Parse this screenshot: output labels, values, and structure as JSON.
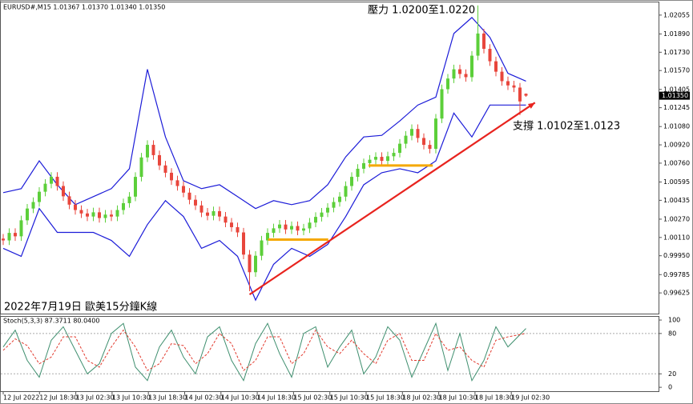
{
  "chart_data": {
    "type": "candlestick",
    "title": "EURUSD#,M15  1.01367 1.01370 1.01340 1.01350",
    "annotations": [
      "壓力 1.0200至1.0220",
      "支撐 1.0102至1.0123",
      "2022年7月19日 歐美15分鐘K線"
    ],
    "up_color": "#5ccf3a",
    "down_color": "#e8463c",
    "candles": [
      [
        1.001,
        1.0014,
        1.00044,
        1.00084
      ],
      [
        1.00084,
        1.0019,
        1.00044,
        1.0015
      ],
      [
        1.0015,
        1.0019,
        1.0008,
        1.0012
      ],
      [
        1.0012,
        1.003,
        1.0008,
        1.0026
      ],
      [
        1.0026,
        1.00403,
        1.0022,
        1.00363
      ],
      [
        1.00363,
        1.0046,
        1.00323,
        1.0042
      ],
      [
        1.0042,
        1.0055,
        1.0038,
        1.0051
      ],
      [
        1.0051,
        1.0062,
        1.0047,
        1.0058
      ],
      [
        1.0058,
        1.00681,
        1.0054,
        1.00641
      ],
      [
        1.00641,
        1.00681,
        1.0052,
        1.0056
      ],
      [
        1.0056,
        1.006,
        1.0043,
        1.0047
      ],
      [
        1.0047,
        1.0051,
        1.00357,
        1.00397
      ],
      [
        1.00397,
        1.00437,
        1.0031,
        1.0035
      ],
      [
        1.0035,
        1.0039,
        1.0028,
        1.0032
      ],
      [
        1.0032,
        1.0036,
        1.00253,
        1.00293
      ],
      [
        1.00293,
        1.0037,
        1.00253,
        1.0033
      ],
      [
        1.0033,
        1.0037,
        1.0024,
        1.0028
      ],
      [
        1.0028,
        1.0035,
        1.0024,
        1.0031
      ],
      [
        1.0031,
        1.0035,
        1.00253,
        1.00293
      ],
      [
        1.00293,
        1.0039,
        1.00253,
        1.0035
      ],
      [
        1.0035,
        1.0045,
        1.0031,
        1.0041
      ],
      [
        1.0041,
        1.00507,
        1.0037,
        1.00467
      ],
      [
        1.00467,
        1.0068,
        1.00427,
        1.0064
      ],
      [
        1.0064,
        1.0085,
        1.006,
        1.0081
      ],
      [
        1.0081,
        1.0096,
        1.0077,
        1.0092
      ],
      [
        1.0092,
        1.0096,
        1.0079,
        1.0083
      ],
      [
        1.0083,
        1.0087,
        1.007,
        1.0074
      ],
      [
        1.0074,
        1.0078,
        1.00636,
        1.00676
      ],
      [
        1.00676,
        1.00716,
        1.0057,
        1.0061
      ],
      [
        1.0061,
        1.0065,
        1.0052,
        1.0056
      ],
      [
        1.0056,
        1.006,
        1.00462,
        1.00502
      ],
      [
        1.00502,
        1.00542,
        1.004,
        1.0044
      ],
      [
        1.0044,
        1.0048,
        1.0035,
        1.0039
      ],
      [
        1.0039,
        1.0043,
        1.00288,
        1.00328
      ],
      [
        1.00328,
        1.00368,
        1.0026,
        1.003
      ],
      [
        1.003,
        1.0038,
        1.0026,
        1.0034
      ],
      [
        1.0034,
        1.0038,
        1.00253,
        1.00293
      ],
      [
        1.00293,
        1.00333,
        1.002,
        1.0024
      ],
      [
        1.0024,
        1.0028,
        1.0016,
        1.002
      ],
      [
        1.002,
        1.0024,
        1.00114,
        1.00154
      ],
      [
        1.00154,
        1.00194,
        0.9992,
        0.9996
      ],
      [
        0.9996,
        1.0,
        0.9964,
        0.99806
      ],
      [
        0.99806,
        0.9999,
        0.99766,
        0.9995
      ],
      [
        0.9995,
        1.00124,
        0.9991,
        1.00084
      ],
      [
        1.00084,
        1.0019,
        1.00044,
        1.0015
      ],
      [
        1.0015,
        1.0023,
        1.0011,
        1.0019
      ],
      [
        1.0019,
        1.00263,
        1.0015,
        1.00223
      ],
      [
        1.00223,
        1.00263,
        1.0014,
        1.0018
      ],
      [
        1.0018,
        1.0025,
        1.0014,
        1.0021
      ],
      [
        1.0021,
        1.0025,
        1.0013,
        1.0017
      ],
      [
        1.0017,
        1.00229,
        1.0013,
        1.00189
      ],
      [
        1.00189,
        1.0028,
        1.00149,
        1.0024
      ],
      [
        1.0024,
        1.0033,
        1.002,
        1.0029
      ],
      [
        1.0029,
        1.00368,
        1.0025,
        1.00328
      ],
      [
        1.00328,
        1.0041,
        1.00288,
        1.0037
      ],
      [
        1.0037,
        1.0046,
        1.0033,
        1.0042
      ],
      [
        1.0042,
        1.00507,
        1.0038,
        1.00467
      ],
      [
        1.00467,
        1.006,
        1.00427,
        1.0056
      ],
      [
        1.0056,
        1.0068,
        1.0052,
        1.0064
      ],
      [
        1.0064,
        1.00751,
        1.006,
        1.00711
      ],
      [
        1.00711,
        1.008,
        1.00671,
        1.0076
      ],
      [
        1.0076,
        1.0083,
        1.0072,
        1.0079
      ],
      [
        1.0079,
        1.00855,
        1.0075,
        1.00815
      ],
      [
        1.00815,
        1.00855,
        1.0074,
        1.0078
      ],
      [
        1.0078,
        1.0086,
        1.0074,
        1.0082
      ],
      [
        1.0082,
        1.0089,
        1.0078,
        1.0085
      ],
      [
        1.0085,
        1.0097,
        1.0081,
        1.0093
      ],
      [
        1.0093,
        1.0104,
        1.0089,
        1.01
      ],
      [
        1.01,
        1.01099,
        1.0096,
        1.01059
      ],
      [
        1.01059,
        1.01099,
        1.0094,
        1.0098
      ],
      [
        1.0098,
        1.0102,
        1.0088,
        1.0092
      ],
      [
        1.0092,
        1.0096,
        1.00845,
        1.00885
      ],
      [
        1.00885,
        1.0119,
        1.00845,
        1.0115
      ],
      [
        1.0115,
        1.01447,
        1.0111,
        1.01407
      ],
      [
        1.01407,
        1.0154,
        1.01367,
        1.015
      ],
      [
        1.015,
        1.01621,
        1.0146,
        1.01581
      ],
      [
        1.01581,
        1.01621,
        1.015,
        1.0154
      ],
      [
        1.0154,
        1.0158,
        1.01472,
        1.01512
      ],
      [
        1.01512,
        1.0174,
        1.01472,
        1.017
      ],
      [
        1.017,
        1.0214,
        1.0166,
        1.01894
      ],
      [
        1.01894,
        1.01934,
        1.0172,
        1.0176
      ],
      [
        1.0176,
        1.018,
        1.01611,
        1.01651
      ],
      [
        1.01651,
        1.01691,
        1.0152,
        1.0156
      ],
      [
        1.0156,
        1.016,
        1.01437,
        1.01477
      ],
      [
        1.01477,
        1.01517,
        1.014,
        1.0144
      ],
      [
        1.0144,
        1.0148,
        1.01381,
        1.01421
      ],
      [
        1.01421,
        1.01461,
        1.0118,
        1.013
      ],
      [
        1.01367,
        1.0137,
        1.0134,
        1.0135
      ]
    ],
    "bands": {
      "color": "#1c1cd8",
      "x": [
        0,
        3,
        6,
        9,
        12,
        15,
        18,
        21,
        24,
        27,
        30,
        33,
        36,
        39,
        42,
        45,
        48,
        51,
        54,
        57,
        60,
        63,
        66,
        69,
        72,
        75,
        78,
        81,
        84,
        87
      ],
      "upper": [
        1.00502,
        1.00537,
        1.0078,
        1.00571,
        1.00397,
        1.00467,
        1.00537,
        1.00711,
        1.01581,
        1.00989,
        1.00606,
        1.00537,
        1.00571,
        1.00467,
        1.00363,
        1.00432,
        1.00397,
        1.00432,
        1.00571,
        1.00815,
        1.00989,
        1.01003,
        1.01129,
        1.01268,
        1.01337,
        1.01894,
        1.02034,
        1.0186,
        1.01546,
        1.01477
      ],
      "lower": [
        1.00015,
        0.99945,
        1.00363,
        1.00154,
        1.00154,
        1.00154,
        1.00084,
        0.99945,
        1.00223,
        1.00432,
        1.00293,
        1.00015,
        1.00084,
        0.99945,
        0.99562,
        0.99875,
        1.00015,
        0.99945,
        1.00049,
        1.00293,
        1.00571,
        1.00676,
        1.00711,
        1.00676,
        1.0078,
        1.01198,
        1.00989,
        1.01268,
        1.01268,
        1.01268
      ]
    },
    "trendlines": [
      {
        "color": "#e8231e",
        "from": [
          41,
          0.99611
        ],
        "to": [
          88.5,
          1.01289
        ]
      },
      {
        "color": "#f5a800",
        "from": [
          60.8,
          1.00739
        ],
        "to": [
          71.5,
          1.00739
        ]
      },
      {
        "color": "#f5a800",
        "from": [
          44.1,
          1.00091
        ],
        "to": [
          54.1,
          1.00091
        ]
      }
    ],
    "ylim": [
      0.99444,
      1.02173
    ],
    "yticks": [
      1.02055,
      {
        "value": 1.0189,
        "label": "1.01890"
      },
      {
        "value": 1.0173,
        "label": "1.01730"
      },
      {
        "value": 1.0157,
        "label": "1.01570"
      },
      1.01405,
      1.01245,
      {
        "value": 1.0108,
        "label": "1.01080"
      },
      {
        "value": 1.0092,
        "label": "1.00920"
      },
      {
        "value": 1.0076,
        "label": "1.00760"
      },
      1.00595,
      1.00435,
      {
        "value": 1.0027,
        "label": "1.00270"
      },
      {
        "value": 1.0011,
        "label": "1.00110"
      },
      {
        "value": 0.9995,
        "label": "0.99950"
      },
      0.99785,
      0.99625
    ],
    "last_price": {
      "value": 1.0135,
      "label": "1.01350"
    },
    "x_labels": [
      "12 Jul 2022",
      "12 Jul 18:30",
      "13 Jul 02:30",
      "13 Jul 10:30",
      "13 Jul 18:30",
      "14 Jul 02:30",
      "14 Jul 10:30",
      "14 Jul 18:30",
      "15 Jul 02:30",
      "15 Jul 10:30",
      "15 Jul 18:30",
      "18 Jul 02:30",
      "18 Jul 10:30",
      "18 Jul 18:30",
      "19 Jul 02:30"
    ],
    "stoch": {
      "label": "Stoch(5,3,3) 87.3711 80.0400",
      "x": [
        0,
        2,
        4,
        6,
        8,
        10,
        12,
        14,
        16,
        18,
        20,
        22,
        24,
        26,
        28,
        30,
        32,
        34,
        36,
        38,
        40,
        42,
        44,
        46,
        48,
        50,
        52,
        54,
        56,
        58,
        60,
        62,
        64,
        66,
        68,
        70,
        72,
        74,
        76,
        78,
        80,
        82,
        84,
        87
      ],
      "series": [
        {
          "name": "Main",
          "color": "#3f8f6f",
          "values": [
            60,
            85,
            40,
            15,
            70,
            90,
            55,
            20,
            35,
            80,
            95,
            30,
            10,
            60,
            85,
            45,
            20,
            75,
            90,
            40,
            10,
            65,
            95,
            50,
            15,
            80,
            90,
            30,
            60,
            85,
            20,
            45,
            90,
            70,
            15,
            55,
            95,
            25,
            80,
            10,
            40,
            90,
            60,
            87.3711
          ]
        },
        {
          "name": "Signal",
          "color": "#e23a2e",
          "values": [
            55,
            72,
            62,
            35,
            45,
            75,
            75,
            40,
            30,
            60,
            85,
            60,
            25,
            35,
            65,
            62,
            35,
            50,
            80,
            65,
            25,
            40,
            75,
            75,
            35,
            50,
            85,
            60,
            50,
            70,
            50,
            35,
            70,
            80,
            40,
            40,
            80,
            55,
            60,
            40,
            30,
            70,
            75,
            80.04
          ]
        }
      ],
      "ylim": [
        -7,
        106
      ],
      "yticks": [
        100,
        80,
        20,
        0
      ],
      "levels": [
        80,
        20
      ]
    }
  }
}
